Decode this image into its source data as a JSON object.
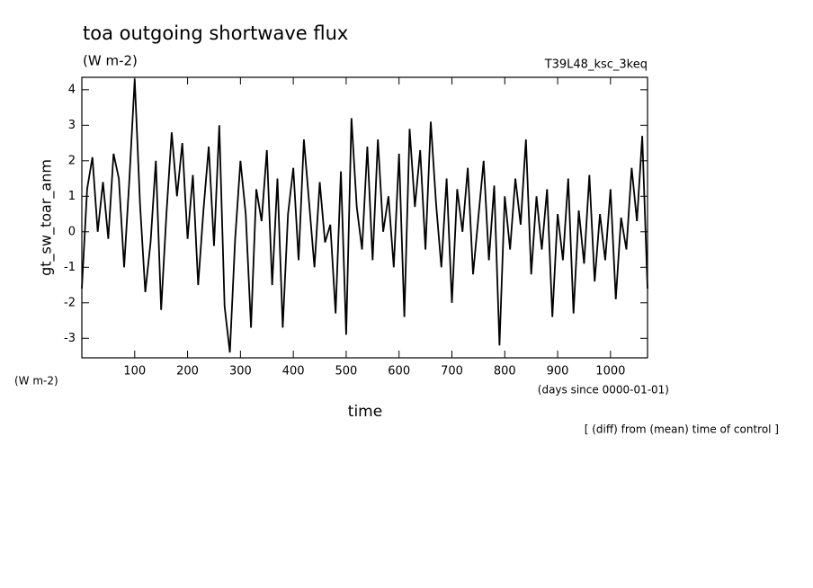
{
  "chart_data": {
    "type": "line",
    "title": "toa outgoing shortwave flux",
    "subtitle": "(W m-2)",
    "run_label": "T39L48_ksc_3keq",
    "y_label": "gt_sw_toar_anm",
    "y_units": "(W m-2)",
    "x_label": "time",
    "x_units": "(days since 0000-01-01)",
    "note": "[ (diff) from (mean) time of control ]",
    "color": "#000000",
    "xlim": [
      0,
      1070
    ],
    "ylim": [
      -3.55,
      4.35
    ],
    "xticks": [
      100,
      200,
      300,
      400,
      500,
      600,
      700,
      800,
      900,
      1000
    ],
    "yticks": [
      -3,
      -2,
      -1,
      0,
      1,
      2,
      3,
      4
    ],
    "x": [
      0,
      10,
      20,
      30,
      40,
      50,
      60,
      70,
      80,
      90,
      100,
      110,
      120,
      130,
      140,
      150,
      160,
      170,
      180,
      190,
      200,
      210,
      220,
      230,
      240,
      250,
      260,
      270,
      280,
      290,
      300,
      310,
      320,
      330,
      340,
      350,
      360,
      370,
      380,
      390,
      400,
      410,
      420,
      430,
      440,
      450,
      460,
      470,
      480,
      490,
      500,
      510,
      520,
      530,
      540,
      550,
      560,
      570,
      580,
      590,
      600,
      610,
      620,
      630,
      640,
      650,
      660,
      670,
      680,
      690,
      700,
      710,
      720,
      730,
      740,
      750,
      760,
      770,
      780,
      790,
      800,
      810,
      820,
      830,
      840,
      850,
      860,
      870,
      880,
      890,
      900,
      910,
      920,
      930,
      940,
      950,
      960,
      970,
      980,
      990,
      1000,
      1010,
      1020,
      1030,
      1040,
      1050,
      1060,
      1070
    ],
    "values": [
      -1.6,
      1.2,
      2.1,
      0,
      1.4,
      -0.2,
      2.2,
      1.5,
      -1.0,
      1.5,
      4.3,
      0.8,
      -1.7,
      -0.3,
      2.0,
      -2.2,
      0.5,
      2.8,
      1.0,
      2.5,
      -0.2,
      1.6,
      -1.5,
      0.6,
      2.4,
      -0.4,
      3.0,
      -2.1,
      -3.4,
      -0.2,
      2.0,
      0.5,
      -2.7,
      1.2,
      0.3,
      2.3,
      -1.5,
      1.5,
      -2.7,
      0.5,
      1.8,
      -0.8,
      2.6,
      0.8,
      -1.0,
      1.4,
      -0.3,
      0.2,
      -2.3,
      1.7,
      -2.9,
      3.2,
      0.7,
      -0.5,
      2.4,
      -0.8,
      2.6,
      0,
      1.0,
      -1.0,
      2.2,
      -2.4,
      2.9,
      0.7,
      2.3,
      -0.5,
      3.1,
      0.8,
      -1.0,
      1.5,
      -2.0,
      1.2,
      0.0,
      1.8,
      -1.2,
      0.4,
      2.0,
      -0.8,
      1.3,
      -3.2,
      1.0,
      -0.5,
      1.5,
      0.2,
      2.6,
      -1.2,
      1.0,
      -0.5,
      1.2,
      -2.4,
      0.5,
      -0.8,
      1.5,
      -2.3,
      0.6,
      -0.9,
      1.6,
      -1.4,
      0.5,
      -0.8,
      1.2,
      -1.9,
      0.4,
      -0.5,
      1.8,
      0.3,
      2.7,
      -1.6
    ]
  }
}
